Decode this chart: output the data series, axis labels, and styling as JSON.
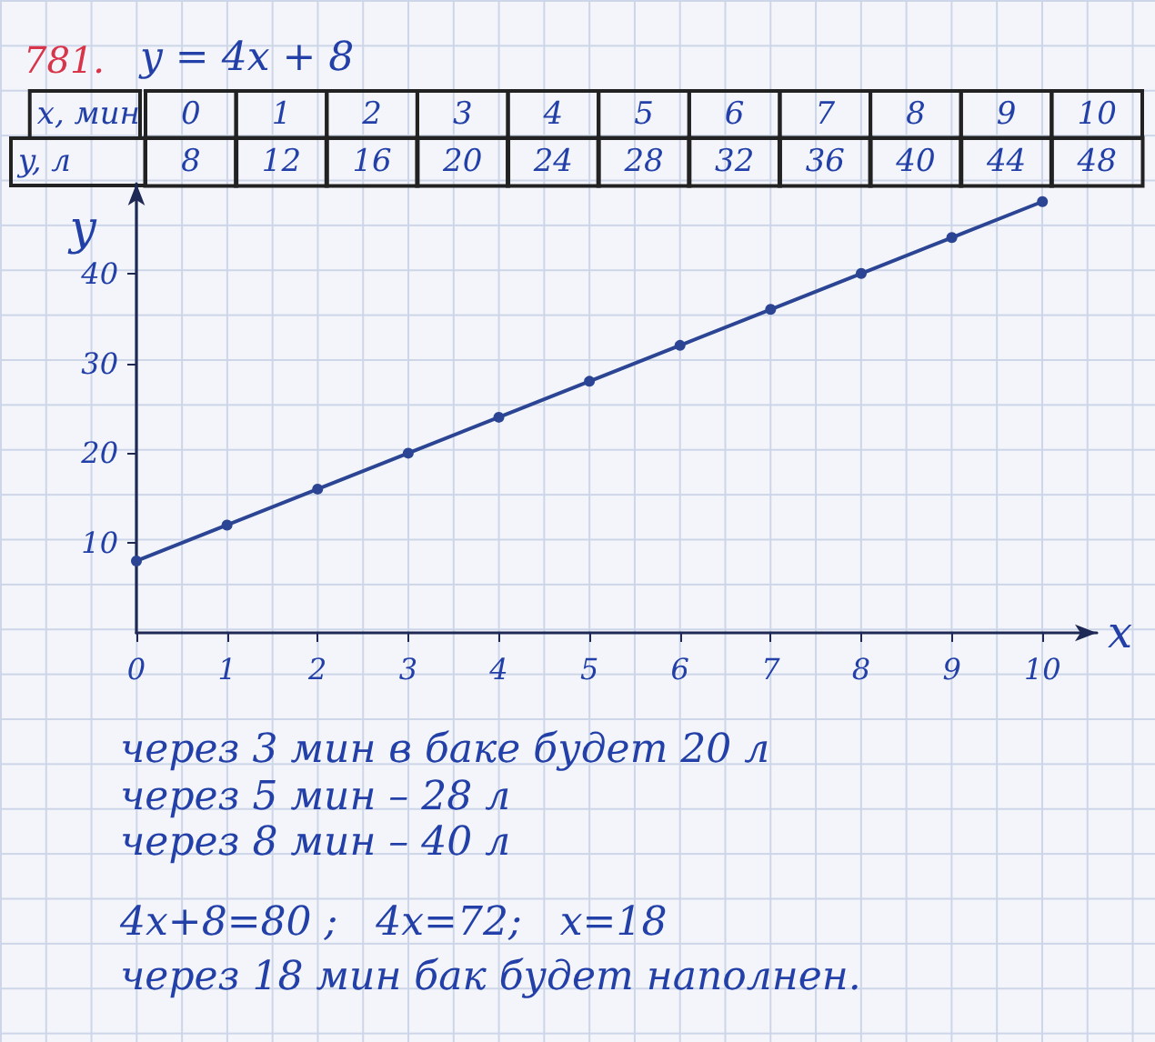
{
  "chart_data": [
    {
      "type": "heatmap",
      "title": "781.",
      "subtitle": "y = 4x + 8",
      "xlabel": "x, мин",
      "categories": [
        "0",
        "1",
        "2",
        "3",
        "4",
        "5",
        "6",
        "7",
        "8",
        "9",
        "10"
      ],
      "y_categories": [
        "y, л"
      ],
      "cells": [
        [
          8,
          12,
          16,
          20,
          24,
          28,
          32,
          36,
          40,
          44,
          48
        ]
      ],
      "data_labels": true
    },
    {
      "type": "line",
      "xlabel": "x",
      "ylabel": "y",
      "x": [
        0,
        1,
        2,
        3,
        4,
        5,
        6,
        7,
        8,
        9,
        10
      ],
      "values": [
        8,
        12,
        16,
        20,
        24,
        28,
        32,
        36,
        40,
        44,
        48
      ],
      "color": "#2b4594",
      "xlim": [
        0,
        10.6
      ],
      "ylim": [
        0,
        50
      ],
      "xticks": [
        0,
        1,
        2,
        3,
        4,
        5,
        6,
        7,
        8,
        9,
        10
      ],
      "yticks": [
        10,
        20,
        30,
        40
      ],
      "marker": "circle",
      "annotations": [
        "через 3 мин в баке будет 20 л",
        "через 5 мин – 28 л",
        "через 8 мин – 40 л",
        "4x+8=80 ;   4x=72;   x=18",
        "через 18 мин бак будет наполнен."
      ]
    }
  ]
}
